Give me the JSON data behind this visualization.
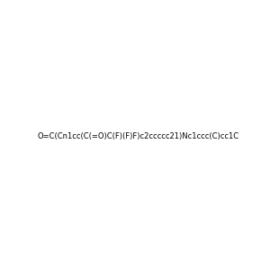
{
  "smiles": "O=C(Cn1cc(C(=O)C(F)(F)F)c2ccccc21)Nc1ccc(C)cc1C",
  "image_size": 300,
  "background_color": "#e8e8e8",
  "title": "",
  "atom_colors": {
    "N": [
      0,
      0,
      255
    ],
    "O": [
      255,
      0,
      0
    ],
    "F": [
      144,
      0,
      144
    ]
  }
}
